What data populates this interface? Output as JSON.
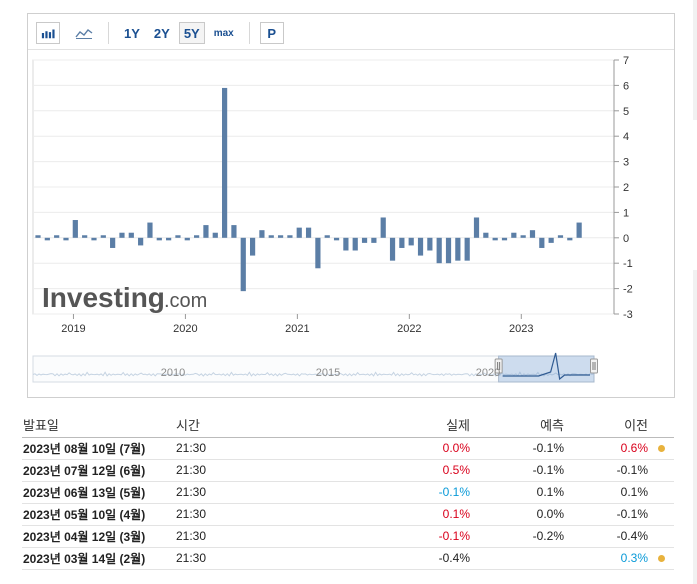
{
  "toolbar": {
    "bar_icon": "bar-chart-icon",
    "line_icon": "line-chart-icon",
    "ranges": [
      "1Y",
      "2Y",
      "5Y",
      "max"
    ],
    "active_range": "5Y",
    "p_label": "P"
  },
  "chart_data": {
    "type": "bar",
    "color": "#5b7ea6",
    "x_ticks": [
      "2019",
      "2020",
      "2021",
      "2022",
      "2023"
    ],
    "y_ticks": [
      "7",
      "6",
      "5",
      "4",
      "3",
      "2",
      "1",
      "0",
      "-1",
      "-2",
      "-3"
    ],
    "ylim": [
      -3,
      7
    ],
    "grid": true,
    "categories": [
      "2018-09",
      "2018-10",
      "2018-11",
      "2018-12",
      "2019-01",
      "2019-02",
      "2019-03",
      "2019-04",
      "2019-05",
      "2019-06",
      "2019-07",
      "2019-08",
      "2019-09",
      "2019-10",
      "2019-11",
      "2019-12",
      "2020-01",
      "2020-02",
      "2020-03",
      "2020-04",
      "2020-05",
      "2020-06",
      "2020-07",
      "2020-08",
      "2020-09",
      "2020-10",
      "2020-11",
      "2020-12",
      "2021-01",
      "2021-02",
      "2021-03",
      "2021-04",
      "2021-05",
      "2021-06",
      "2021-07",
      "2021-08",
      "2021-09",
      "2021-10",
      "2021-11",
      "2021-12",
      "2022-01",
      "2022-02",
      "2022-03",
      "2022-04",
      "2022-05",
      "2022-06",
      "2022-07",
      "2022-08",
      "2022-09",
      "2022-10",
      "2022-11",
      "2022-12",
      "2023-01",
      "2023-02",
      "2023-03",
      "2023-04",
      "2023-05",
      "2023-06",
      "2023-07"
    ],
    "values": [
      0.1,
      -0.1,
      0.1,
      -0.1,
      0.7,
      0.1,
      -0.1,
      0.1,
      -0.4,
      0.2,
      0.2,
      -0.3,
      0.6,
      -0.1,
      -0.1,
      0.1,
      -0.1,
      0.1,
      0.5,
      0.2,
      5.9,
      0.5,
      -2.1,
      -0.7,
      0.3,
      0.1,
      0.1,
      0.1,
      0.4,
      0.4,
      -1.2,
      0.1,
      -0.1,
      -0.5,
      -0.5,
      -0.2,
      -0.2,
      0.8,
      -0.9,
      -0.4,
      -0.3,
      -0.7,
      -0.5,
      -1.0,
      -1.0,
      -0.9,
      -0.9,
      0.8,
      0.2,
      -0.1,
      -0.1,
      0.2,
      0.1,
      0.3,
      -0.4,
      -0.2,
      0.1,
      -0.1,
      0.6
    ],
    "watermark": {
      "brand": "Investing",
      "suffix": ".com"
    },
    "navigator": {
      "labels": [
        "2010",
        "2015",
        "2020"
      ],
      "window_start_fraction": 0.83,
      "window_end_fraction": 1.0
    }
  },
  "table": {
    "headers": {
      "date": "발표일",
      "time": "시간",
      "actual": "실제",
      "forecast": "예측",
      "previous": "이전"
    },
    "rows": [
      {
        "date": "2023년 08월 10일 (7월)",
        "time": "21:30",
        "actual": "0.0%",
        "actual_tone": "pos",
        "forecast": "-0.1%",
        "previous": "0.6%",
        "previous_tone": "pos",
        "dot": true
      },
      {
        "date": "2023년 07월 12일 (6월)",
        "time": "21:30",
        "actual": "0.5%",
        "actual_tone": "pos",
        "forecast": "-0.1%",
        "previous": "-0.1%",
        "previous_tone": "neu",
        "dot": false
      },
      {
        "date": "2023년 06월 13일 (5월)",
        "time": "21:30",
        "actual": "-0.1%",
        "actual_tone": "neg",
        "forecast": "0.1%",
        "previous": "0.1%",
        "previous_tone": "neu",
        "dot": false
      },
      {
        "date": "2023년 05월 10일 (4월)",
        "time": "21:30",
        "actual": "0.1%",
        "actual_tone": "pos",
        "forecast": "0.0%",
        "previous": "-0.1%",
        "previous_tone": "neu",
        "dot": false
      },
      {
        "date": "2023년 04월 12일 (3월)",
        "time": "21:30",
        "actual": "-0.1%",
        "actual_tone": "pos",
        "forecast": "-0.2%",
        "previous": "-0.4%",
        "previous_tone": "neu",
        "dot": false
      },
      {
        "date": "2023년 03월 14일 (2월)",
        "time": "21:30",
        "actual": "-0.4%",
        "actual_tone": "neu",
        "forecast": "",
        "previous": "0.3%",
        "previous_tone": "neg",
        "dot": true
      }
    ]
  }
}
